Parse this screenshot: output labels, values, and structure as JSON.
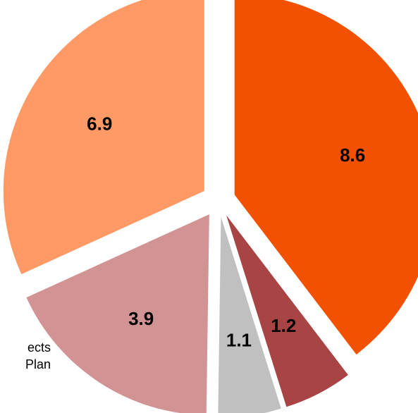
{
  "chart_data": {
    "type": "pie",
    "style": "exploded",
    "start_angle_deg": 0,
    "direction": "clockwise",
    "slices": [
      {
        "label": "8.6",
        "value": 8.6,
        "color": "#F25100"
      },
      {
        "label": "1.2",
        "value": 1.2,
        "color": "#A84444"
      },
      {
        "label": "1.1",
        "value": 1.1,
        "color": "#C0C0C0"
      },
      {
        "label": "3.9",
        "value": 3.9,
        "color": "#D29394"
      },
      {
        "label": "6.9",
        "value": 6.9,
        "color": "#FF9A66"
      }
    ]
  },
  "side_text": {
    "line1": "ects",
    "line2": "Plan"
  }
}
